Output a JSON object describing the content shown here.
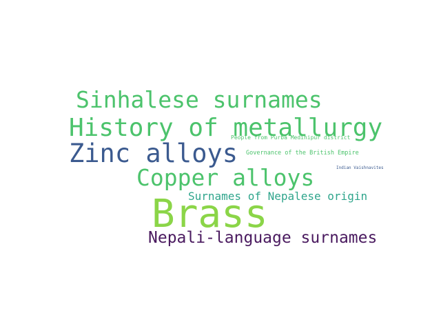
{
  "word_cloud": {
    "words": [
      {
        "text": "Sinhalese surnames",
        "color": "#4cc36c"
      },
      {
        "text": "History of metallurgy",
        "color": "#4cc36c"
      },
      {
        "text": "People from Purba Medinipur district",
        "color": "#4cc36c"
      },
      {
        "text": "Zinc alloys",
        "color": "#3b5a8f"
      },
      {
        "text": "Governance of the British Empire",
        "color": "#4cc36c"
      },
      {
        "text": "Indian Vaishnavites",
        "color": "#3b5a8f"
      },
      {
        "text": "Copper alloys",
        "color": "#4cc36c"
      },
      {
        "text": "Surnames of Nepalese origin",
        "color": "#2fa58c"
      },
      {
        "text": "Brass",
        "color": "#8bd548"
      },
      {
        "text": "Nepali-language surnames",
        "color": "#4a1a5f"
      }
    ]
  }
}
